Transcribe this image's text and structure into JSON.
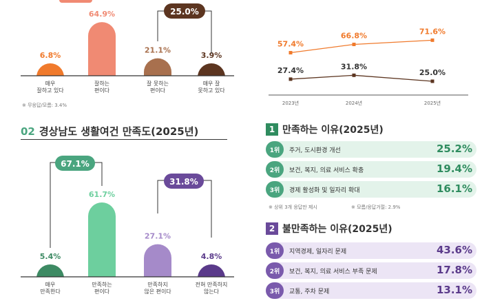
{
  "left": {
    "top_chart": {
      "highlight_groups": [
        "25.0%"
      ],
      "bars": [
        {
          "value_label": "6.8%",
          "value": 6.8,
          "label": [
            "매우",
            "잘하고 있다"
          ],
          "color": "#f07a2c"
        },
        {
          "value_label": "64.9%",
          "value": 64.9,
          "label": [
            "잘하는",
            "편이다"
          ],
          "color": "#f08a73"
        },
        {
          "value_label": "21.1%",
          "value": 21.1,
          "label": [
            "잘 못하는",
            "편이다"
          ],
          "color": "#a8704e"
        },
        {
          "value_label": "3.9%",
          "value": 3.9,
          "label": [
            "매우 잘",
            "못하고 있다"
          ],
          "color": "#5c3520"
        }
      ],
      "note": "※ 무응답/모름: 3.4%"
    },
    "section2": {
      "num": "02",
      "title": "경상남도 생활여건 만족도(2025년)",
      "group_left": "67.1%",
      "group_right": "31.8%",
      "bars": [
        {
          "value_label": "5.4%",
          "value": 5.4,
          "label": [
            "매우",
            "만족한다"
          ],
          "color": "#3d8a63"
        },
        {
          "value_label": "61.7%",
          "value": 61.7,
          "label": [
            "만족하는",
            "편이다"
          ],
          "color": "#6dcf9e"
        },
        {
          "value_label": "27.1%",
          "value": 27.1,
          "label": [
            "만족하지",
            "않은 편이다"
          ],
          "color": "#a58ac9"
        },
        {
          "value_label": "4.8%",
          "value": 4.8,
          "label": [
            "전혀 만족하지",
            "않는다"
          ],
          "color": "#5a3a8a"
        }
      ]
    }
  },
  "right": {
    "line_chart": {
      "x": [
        "2023년",
        "2024년",
        "2025년"
      ],
      "series": [
        {
          "values": [
            57.4,
            66.8,
            71.6
          ],
          "labels": [
            "57.4%",
            "66.8%",
            "71.6%"
          ],
          "color": "#f07a2c"
        },
        {
          "values": [
            27.4,
            31.8,
            25.0
          ],
          "labels": [
            "27.4%",
            "31.8%",
            "25.0%"
          ],
          "color": "#5c3520"
        }
      ]
    },
    "satisfied": {
      "num": "1",
      "title": "만족하는 이유(2025년)",
      "items": [
        {
          "rank": "1위",
          "text": "주거, 도시환경 개선",
          "value": "25.2%"
        },
        {
          "rank": "2위",
          "text": "보건, 복지, 의료 서비스 확충",
          "value": "19.4%"
        },
        {
          "rank": "3위",
          "text": "경제 활성화 및 일자리 확대",
          "value": "16.1%"
        }
      ],
      "note_left": "※ 상위 3개 응답만 제시",
      "note_right": "※ 모름/응답거절: 2.9%"
    },
    "dissatisfied": {
      "num": "2",
      "title": "불만족하는 이유(2025년)",
      "items": [
        {
          "rank": "1위",
          "text": "지역경제, 일자리 문제",
          "value": "43.6%"
        },
        {
          "rank": "2위",
          "text": "보건, 복지, 의료 서비스 부족 문제",
          "value": "17.8%"
        },
        {
          "rank": "3위",
          "text": "교통, 주차 문제",
          "value": "13.1%"
        }
      ]
    }
  },
  "chart_data": [
    {
      "type": "bar",
      "categories": [
        "매우 잘하고 있다",
        "잘하는 편이다",
        "잘 못하는 편이다",
        "매우 잘 못하고 있다"
      ],
      "values": [
        6.8,
        64.9,
        21.1,
        3.9
      ]
    },
    {
      "type": "bar",
      "title": "경상남도 생활여건 만족도(2025년)",
      "categories": [
        "매우 만족한다",
        "만족하는 편이다",
        "만족하지 않은 편이다",
        "전혀 만족하지 않는다"
      ],
      "values": [
        5.4,
        61.7,
        27.1,
        4.8
      ]
    },
    {
      "type": "line",
      "x": [
        "2023년",
        "2024년",
        "2025년"
      ],
      "series": [
        {
          "values": [
            57.4,
            66.8,
            71.6
          ]
        },
        {
          "values": [
            27.4,
            31.8,
            25.0
          ]
        }
      ]
    }
  ]
}
